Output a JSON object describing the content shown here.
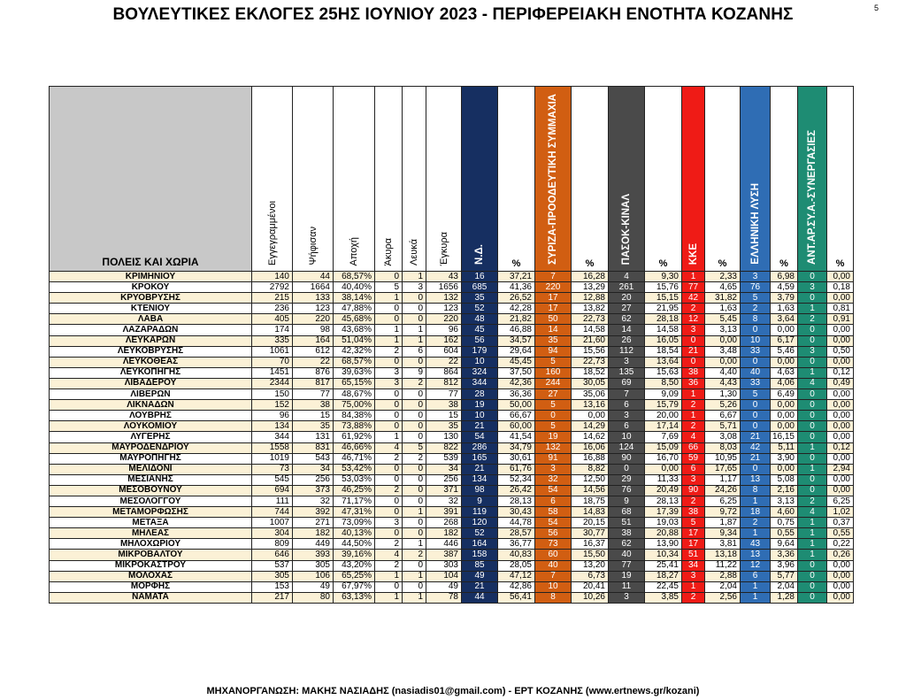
{
  "title": "ΒΟΥΛΕΥΤΙΚΕΣ ΕΚΛΟΓΕΣ 25ΗΣ ΙΟΥΝΙΟΥ 2023 - ΠΕΡΙΦΕΡΕΙΑΚΗ ΕΝΟΤΗΤΑ ΚΟΖΑΝΗΣ",
  "page_number": "5",
  "footer": "ΜΗΧΑΝΟΡΓΑΝΩΣΗ: ΜΑΚΗΣ ΝΑΣΙΑΔΗΣ (nasiadis01@gmail.com) - ΕΡΤ ΚΟΖΑΝΗΣ (www.ertnews.gr/kozani)",
  "headers": {
    "place": "ΠΟΛΕΙΣ ΚΑΙ ΧΩΡΙΑ",
    "registered": "Εγγεγραμμένοι",
    "voted": "Ψήφισαν",
    "abstention": "Αποχή",
    "invalid": "Άκυρα",
    "blank": "Λευκά",
    "valid": "Έγκυρα",
    "pct": "%"
  },
  "parties": [
    {
      "name": "Ν.Δ.",
      "color": "#162f61"
    },
    {
      "name": "ΣΥΡΙΖΑ-ΠΡΟΟΔΕΥΤΙΚΗ ΣΥΜΜΑΧΙΑ",
      "color": "#d15e12"
    },
    {
      "name": "ΠΑΣΟΚ-ΚΙΝΑΛ",
      "color": "#4a4a4a"
    },
    {
      "name": "ΚΚΕ",
      "color": "#ef1b16"
    },
    {
      "name": "ΕΛΛΗΝΙΚΗ ΛΥΣΗ",
      "color": "#2f6db4"
    },
    {
      "name": "ΑΝΤ.ΑΡ.ΣΥ.Α.-ΣΥΝΕΡΓΑΣΙΕΣ",
      "color": "#1e8c73"
    }
  ],
  "rows": [
    [
      "ΚΡΙΜΗΝΙΟΥ",
      "140",
      "44",
      "68,57%",
      "0",
      "1",
      "43",
      "16",
      "37,21",
      "7",
      "16,28",
      "4",
      "9,30",
      "1",
      "2,33",
      "3",
      "6,98",
      "0",
      "0,00"
    ],
    [
      "ΚΡΟΚΟΥ",
      "2792",
      "1664",
      "40,40%",
      "5",
      "3",
      "1656",
      "685",
      "41,36",
      "220",
      "13,29",
      "261",
      "15,76",
      "77",
      "4,65",
      "76",
      "4,59",
      "3",
      "0,18"
    ],
    [
      "ΚΡΥΟΒΡΥΣΗΣ",
      "215",
      "133",
      "38,14%",
      "1",
      "0",
      "132",
      "35",
      "26,52",
      "17",
      "12,88",
      "20",
      "15,15",
      "42",
      "31,82",
      "5",
      "3,79",
      "0",
      "0,00"
    ],
    [
      "ΚΤΕΝΙΟΥ",
      "236",
      "123",
      "47,88%",
      "0",
      "0",
      "123",
      "52",
      "42,28",
      "17",
      "13,82",
      "27",
      "21,95",
      "2",
      "1,63",
      "2",
      "1,63",
      "1",
      "0,81"
    ],
    [
      "ΛΑΒΑ",
      "405",
      "220",
      "45,68%",
      "0",
      "0",
      "220",
      "48",
      "21,82",
      "50",
      "22,73",
      "62",
      "28,18",
      "12",
      "5,45",
      "8",
      "3,64",
      "2",
      "0,91"
    ],
    [
      "ΛΑΖΑΡΑΔΩΝ",
      "174",
      "98",
      "43,68%",
      "1",
      "1",
      "96",
      "45",
      "46,88",
      "14",
      "14,58",
      "14",
      "14,58",
      "3",
      "3,13",
      "0",
      "0,00",
      "0",
      "0,00"
    ],
    [
      "ΛΕΥΚΑΡΩΝ",
      "335",
      "164",
      "51,04%",
      "1",
      "1",
      "162",
      "56",
      "34,57",
      "35",
      "21,60",
      "26",
      "16,05",
      "0",
      "0,00",
      "10",
      "6,17",
      "0",
      "0,00"
    ],
    [
      "ΛΕΥΚΟΒΡΥΣΗΣ",
      "1061",
      "612",
      "42,32%",
      "2",
      "6",
      "604",
      "179",
      "29,64",
      "94",
      "15,56",
      "112",
      "18,54",
      "21",
      "3,48",
      "33",
      "5,46",
      "3",
      "0,50"
    ],
    [
      "ΛΕΥΚΟΘΕΑΣ",
      "70",
      "22",
      "68,57%",
      "0",
      "0",
      "22",
      "10",
      "45,45",
      "5",
      "22,73",
      "3",
      "13,64",
      "0",
      "0,00",
      "0",
      "0,00",
      "0",
      "0,00"
    ],
    [
      "ΛΕΥΚΟΠΗΓΗΣ",
      "1451",
      "876",
      "39,63%",
      "3",
      "9",
      "864",
      "324",
      "37,50",
      "160",
      "18,52",
      "135",
      "15,63",
      "38",
      "4,40",
      "40",
      "4,63",
      "1",
      "0,12"
    ],
    [
      "ΛΙΒΑΔΕΡΟΥ",
      "2344",
      "817",
      "65,15%",
      "3",
      "2",
      "812",
      "344",
      "42,36",
      "244",
      "30,05",
      "69",
      "8,50",
      "36",
      "4,43",
      "33",
      "4,06",
      "4",
      "0,49"
    ],
    [
      "ΛΙΒΕΡΩΝ",
      "150",
      "77",
      "48,67%",
      "0",
      "0",
      "77",
      "28",
      "36,36",
      "27",
      "35,06",
      "7",
      "9,09",
      "1",
      "1,30",
      "5",
      "6,49",
      "0",
      "0,00"
    ],
    [
      "ΛΙΚΝΑΔΩΝ",
      "152",
      "38",
      "75,00%",
      "0",
      "0",
      "38",
      "19",
      "50,00",
      "5",
      "13,16",
      "6",
      "15,79",
      "2",
      "5,26",
      "0",
      "0,00",
      "0",
      "0,00"
    ],
    [
      "ΛΟΥΒΡΗΣ",
      "96",
      "15",
      "84,38%",
      "0",
      "0",
      "15",
      "10",
      "66,67",
      "0",
      "0,00",
      "3",
      "20,00",
      "1",
      "6,67",
      "0",
      "0,00",
      "0",
      "0,00"
    ],
    [
      "ΛΟΥΚΟΜΙΟΥ",
      "134",
      "35",
      "73,88%",
      "0",
      "0",
      "35",
      "21",
      "60,00",
      "5",
      "14,29",
      "6",
      "17,14",
      "2",
      "5,71",
      "0",
      "0,00",
      "0",
      "0,00"
    ],
    [
      "ΛΥΓΕΡΗΣ",
      "344",
      "131",
      "61,92%",
      "1",
      "0",
      "130",
      "54",
      "41,54",
      "19",
      "14,62",
      "10",
      "7,69",
      "4",
      "3,08",
      "21",
      "16,15",
      "0",
      "0,00"
    ],
    [
      "ΜΑΥΡΟΔΕΝΔΡΙΟΥ",
      "1558",
      "831",
      "46,66%",
      "4",
      "5",
      "822",
      "286",
      "34,79",
      "132",
      "16,06",
      "124",
      "15,09",
      "66",
      "8,03",
      "42",
      "5,11",
      "1",
      "0,12"
    ],
    [
      "ΜΑΥΡΟΠΗΓΗΣ",
      "1019",
      "543",
      "46,71%",
      "2",
      "2",
      "539",
      "165",
      "30,61",
      "91",
      "16,88",
      "90",
      "16,70",
      "59",
      "10,95",
      "21",
      "3,90",
      "0",
      "0,00"
    ],
    [
      "ΜΕΛΙΔΟΝΙ",
      "73",
      "34",
      "53,42%",
      "0",
      "0",
      "34",
      "21",
      "61,76",
      "3",
      "8,82",
      "0",
      "0,00",
      "6",
      "17,65",
      "0",
      "0,00",
      "1",
      "2,94"
    ],
    [
      "ΜΕΣΙΑΝΗΣ",
      "545",
      "256",
      "53,03%",
      "0",
      "0",
      "256",
      "134",
      "52,34",
      "32",
      "12,50",
      "29",
      "11,33",
      "3",
      "1,17",
      "13",
      "5,08",
      "0",
      "0,00"
    ],
    [
      "ΜΕΣΟΒΟΥΝΟΥ",
      "694",
      "373",
      "46,25%",
      "2",
      "0",
      "371",
      "98",
      "26,42",
      "54",
      "14,56",
      "76",
      "20,49",
      "90",
      "24,26",
      "8",
      "2,16",
      "0",
      "0,00"
    ],
    [
      "ΜΕΣΟΛΟΓΓΟΥ",
      "111",
      "32",
      "71,17%",
      "0",
      "0",
      "32",
      "9",
      "28,13",
      "6",
      "18,75",
      "9",
      "28,13",
      "2",
      "6,25",
      "1",
      "3,13",
      "2",
      "6,25"
    ],
    [
      "ΜΕΤΑΜΟΡΦΩΣΗΣ",
      "744",
      "392",
      "47,31%",
      "0",
      "1",
      "391",
      "119",
      "30,43",
      "58",
      "14,83",
      "68",
      "17,39",
      "38",
      "9,72",
      "18",
      "4,60",
      "4",
      "1,02"
    ],
    [
      "ΜΕΤΑΞΑ",
      "1007",
      "271",
      "73,09%",
      "3",
      "0",
      "268",
      "120",
      "44,78",
      "54",
      "20,15",
      "51",
      "19,03",
      "5",
      "1,87",
      "2",
      "0,75",
      "1",
      "0,37"
    ],
    [
      "ΜΗΛΕΑΣ",
      "304",
      "182",
      "40,13%",
      "0",
      "0",
      "182",
      "52",
      "28,57",
      "56",
      "30,77",
      "38",
      "20,88",
      "17",
      "9,34",
      "1",
      "0,55",
      "1",
      "0,55"
    ],
    [
      "ΜΗΛΟΧΩΡΙΟΥ",
      "809",
      "449",
      "44,50%",
      "2",
      "1",
      "446",
      "164",
      "36,77",
      "73",
      "16,37",
      "62",
      "13,90",
      "17",
      "3,81",
      "43",
      "9,64",
      "1",
      "0,22"
    ],
    [
      "ΜΙΚΡΟΒΑΛΤΟΥ",
      "646",
      "393",
      "39,16%",
      "4",
      "2",
      "387",
      "158",
      "40,83",
      "60",
      "15,50",
      "40",
      "10,34",
      "51",
      "13,18",
      "13",
      "3,36",
      "1",
      "0,26"
    ],
    [
      "ΜΙΚΡΟΚΑΣΤΡΟΥ",
      "537",
      "305",
      "43,20%",
      "2",
      "0",
      "303",
      "85",
      "28,05",
      "40",
      "13,20",
      "77",
      "25,41",
      "34",
      "11,22",
      "12",
      "3,96",
      "0",
      "0,00"
    ],
    [
      "ΜΟΛΟΧΑΣ",
      "305",
      "106",
      "65,25%",
      "1",
      "1",
      "104",
      "49",
      "47,12",
      "7",
      "6,73",
      "19",
      "18,27",
      "3",
      "2,88",
      "6",
      "5,77",
      "0",
      "0,00"
    ],
    [
      "ΜΟΡΦΗΣ",
      "153",
      "49",
      "67,97%",
      "0",
      "0",
      "49",
      "21",
      "42,86",
      "10",
      "20,41",
      "11",
      "22,45",
      "1",
      "2,04",
      "1",
      "2,04",
      "0",
      "0,00"
    ],
    [
      "ΝΑΜΑΤΑ",
      "217",
      "80",
      "63,13%",
      "1",
      "1",
      "78",
      "44",
      "56,41",
      "8",
      "10,26",
      "3",
      "3,85",
      "2",
      "2,56",
      "1",
      "1,28",
      "0",
      "0,00"
    ]
  ]
}
